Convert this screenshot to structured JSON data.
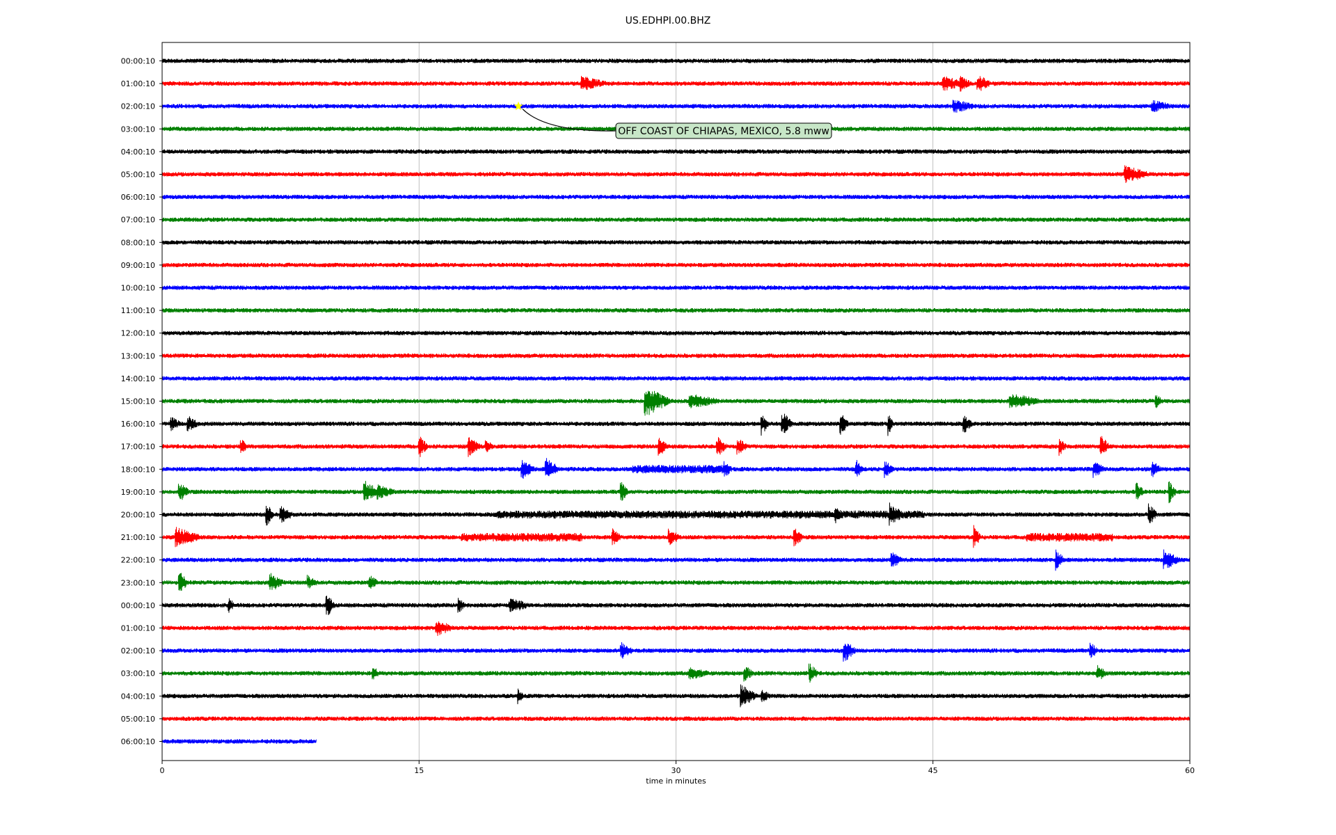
{
  "chart_data": {
    "type": "line",
    "title": "US.EDHPI.00.BHZ",
    "xlabel": "time in minutes",
    "ylabel": "",
    "xlim": [
      0,
      60
    ],
    "xticks": [
      0,
      15,
      30,
      45,
      60
    ],
    "grid": "vertical lines at 15, 30, 45 minutes",
    "row_labels": [
      "00:00:10",
      "01:00:10",
      "02:00:10",
      "03:00:10",
      "04:00:10",
      "05:00:10",
      "06:00:10",
      "07:00:10",
      "08:00:10",
      "09:00:10",
      "10:00:10",
      "11:00:10",
      "12:00:10",
      "13:00:10",
      "14:00:10",
      "15:00:10",
      "16:00:10",
      "17:00:10",
      "18:00:10",
      "19:00:10",
      "20:00:10",
      "21:00:10",
      "22:00:10",
      "23:00:10",
      "00:00:10",
      "01:00:10",
      "02:00:10",
      "03:00:10",
      "04:00:10",
      "05:00:10",
      "06:00:10"
    ],
    "row_colors": [
      "#000000",
      "#ff0000",
      "#0000ff",
      "#008000"
    ],
    "last_row_end_minute": 9,
    "event": {
      "label": "OFF COAST OF CHIAPAS, MEXICO, 5.8 mww",
      "row": 2,
      "minute": 20.8,
      "marker_color": "#ffff00"
    },
    "bursts": [
      [],
      [
        {
          "t": 24.5,
          "a": 8,
          "d": 1.5
        },
        {
          "t": 45.6,
          "a": 9,
          "d": 1.2
        },
        {
          "t": 46.6,
          "a": 9,
          "d": 0.6
        },
        {
          "t": 47.6,
          "a": 10,
          "d": 0.8
        }
      ],
      [
        {
          "t": 46.2,
          "a": 8,
          "d": 1.2
        },
        {
          "t": 57.8,
          "a": 6,
          "d": 1.2
        }
      ],
      [],
      [],
      [
        {
          "t": 56.2,
          "a": 10,
          "d": 1.5
        }
      ],
      [],
      [],
      [],
      [],
      [],
      [],
      [],
      [],
      [],
      [
        {
          "t": 28.2,
          "a": 20,
          "d": 1.5
        },
        {
          "t": 30.8,
          "a": 8,
          "d": 1.8
        },
        {
          "t": 49.5,
          "a": 9,
          "d": 1.8
        },
        {
          "t": 58,
          "a": 8,
          "d": 0.4
        }
      ],
      [
        {
          "t": 0.5,
          "a": 8,
          "d": 0.6
        },
        {
          "t": 1.5,
          "a": 10,
          "d": 0.6
        },
        {
          "t": 35,
          "a": 14,
          "d": 0.4
        },
        {
          "t": 36.2,
          "a": 16,
          "d": 0.6
        },
        {
          "t": 39.6,
          "a": 14,
          "d": 0.5
        },
        {
          "t": 42.4,
          "a": 13,
          "d": 0.3
        },
        {
          "t": 46.8,
          "a": 11,
          "d": 0.5
        }
      ],
      [
        {
          "t": 4.6,
          "a": 8,
          "d": 0.4
        },
        {
          "t": 15,
          "a": 16,
          "d": 0.5
        },
        {
          "t": 17.9,
          "a": 12,
          "d": 0.7
        },
        {
          "t": 18.9,
          "a": 8,
          "d": 0.4
        },
        {
          "t": 29,
          "a": 12,
          "d": 0.5
        },
        {
          "t": 32.4,
          "a": 12,
          "d": 0.6
        },
        {
          "t": 33.6,
          "a": 10,
          "d": 0.6
        },
        {
          "t": 52.4,
          "a": 10,
          "d": 0.4
        },
        {
          "t": 54.8,
          "a": 14,
          "d": 0.5
        }
      ],
      [
        {
          "t": 21,
          "a": 12,
          "d": 0.8
        },
        {
          "t": 22.4,
          "a": 14,
          "d": 0.8
        },
        {
          "t": 27.5,
          "a": 6,
          "d": 5.5
        },
        {
          "t": 32.8,
          "a": 10,
          "d": 0.5
        },
        {
          "t": 40.5,
          "a": 12,
          "d": 0.4
        },
        {
          "t": 42.2,
          "a": 10,
          "d": 0.5
        },
        {
          "t": 54.4,
          "a": 10,
          "d": 0.6
        },
        {
          "t": 57.8,
          "a": 10,
          "d": 0.5
        }
      ],
      [
        {
          "t": 1,
          "a": 12,
          "d": 0.6
        },
        {
          "t": 11.8,
          "a": 14,
          "d": 0.9
        },
        {
          "t": 12.6,
          "a": 8,
          "d": 1
        },
        {
          "t": 26.8,
          "a": 12,
          "d": 0.4
        },
        {
          "t": 56.9,
          "a": 14,
          "d": 0.4
        },
        {
          "t": 58.8,
          "a": 14,
          "d": 0.4
        }
      ],
      [
        {
          "t": 6.1,
          "a": 14,
          "d": 0.4
        },
        {
          "t": 6.9,
          "a": 10,
          "d": 0.8
        },
        {
          "t": 19.5,
          "a": 5,
          "d": 25
        },
        {
          "t": 39.3,
          "a": 10,
          "d": 0.5
        },
        {
          "t": 42.5,
          "a": 14,
          "d": 0.8
        },
        {
          "t": 57.6,
          "a": 14,
          "d": 0.5
        }
      ],
      [
        {
          "t": 0.8,
          "a": 12,
          "d": 1.5
        },
        {
          "t": 17.5,
          "a": 6,
          "d": 7
        },
        {
          "t": 26.3,
          "a": 10,
          "d": 0.5
        },
        {
          "t": 29.6,
          "a": 12,
          "d": 0.6
        },
        {
          "t": 36.9,
          "a": 12,
          "d": 0.5
        },
        {
          "t": 47.4,
          "a": 14,
          "d": 0.4
        },
        {
          "t": 50.5,
          "a": 6,
          "d": 5
        }
      ],
      [
        {
          "t": 42.6,
          "a": 9,
          "d": 0.6
        },
        {
          "t": 52.2,
          "a": 12,
          "d": 0.5
        },
        {
          "t": 58.5,
          "a": 12,
          "d": 0.9
        }
      ],
      [
        {
          "t": 1,
          "a": 14,
          "d": 0.5
        },
        {
          "t": 6.3,
          "a": 12,
          "d": 0.8
        },
        {
          "t": 8.5,
          "a": 8,
          "d": 0.6
        },
        {
          "t": 12.1,
          "a": 9,
          "d": 0.5
        }
      ],
      [
        {
          "t": 3.9,
          "a": 10,
          "d": 0.3
        },
        {
          "t": 9.6,
          "a": 14,
          "d": 0.5
        },
        {
          "t": 17.3,
          "a": 8,
          "d": 0.4
        },
        {
          "t": 20.3,
          "a": 8,
          "d": 1.2
        }
      ],
      [
        {
          "t": 16,
          "a": 9,
          "d": 1
        }
      ],
      [
        {
          "t": 26.8,
          "a": 10,
          "d": 0.7
        },
        {
          "t": 39.8,
          "a": 14,
          "d": 0.7
        },
        {
          "t": 54.2,
          "a": 10,
          "d": 0.4
        }
      ],
      [
        {
          "t": 12.3,
          "a": 8,
          "d": 0.4
        },
        {
          "t": 30.8,
          "a": 6,
          "d": 1.2
        },
        {
          "t": 34,
          "a": 10,
          "d": 0.5
        },
        {
          "t": 37.8,
          "a": 12,
          "d": 0.5
        },
        {
          "t": 54.6,
          "a": 10,
          "d": 0.5
        }
      ],
      [
        {
          "t": 20.8,
          "a": 8,
          "d": 0.3
        },
        {
          "t": 33.8,
          "a": 14,
          "d": 1
        },
        {
          "t": 35,
          "a": 6,
          "d": 0.6
        }
      ],
      [],
      []
    ]
  }
}
